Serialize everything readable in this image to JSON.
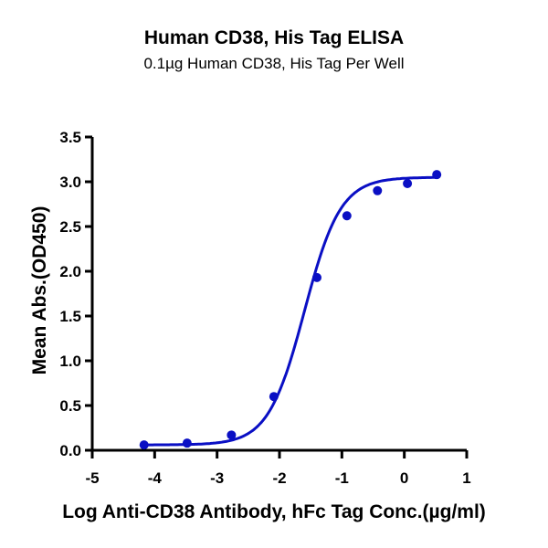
{
  "chart_data": {
    "type": "scatter",
    "title": "Human CD38, His Tag ELISA",
    "subtitle": "0.1µg Human CD38, His Tag Per Well",
    "xlabel": "Log Anti-CD38 Antibody, hFc Tag Conc.(µg/ml)",
    "ylabel": "Mean Abs.(OD450)",
    "xlim": [
      -5,
      1
    ],
    "ylim": [
      0,
      3.5
    ],
    "xticks": [
      -5,
      -4,
      -3,
      -2,
      -1,
      0,
      1
    ],
    "yticks": [
      0.0,
      0.5,
      1.0,
      1.5,
      2.0,
      2.5,
      3.0,
      3.5
    ],
    "xtick_labels": [
      "-5",
      "-4",
      "-3",
      "-2",
      "-1",
      "0",
      "1"
    ],
    "ytick_labels": [
      "0.0",
      "0.5",
      "1.0",
      "1.5",
      "2.0",
      "2.5",
      "3.0",
      "3.5"
    ],
    "grid": false,
    "legend": null,
    "series": [
      {
        "name": "Human CD38, His Tag",
        "color": "#0a0fc4",
        "x": [
          -4.17,
          -3.48,
          -2.77,
          -2.09,
          -1.4,
          -0.92,
          -0.43,
          0.05,
          0.52
        ],
        "y": [
          0.06,
          0.08,
          0.17,
          0.6,
          1.93,
          2.62,
          2.9,
          2.98,
          3.08
        ],
        "fit": "4PL sigmoid",
        "fit_params": {
          "bottom": 0.06,
          "top": 3.05,
          "logEC50": -1.6,
          "hill": 1.5
        }
      }
    ]
  }
}
